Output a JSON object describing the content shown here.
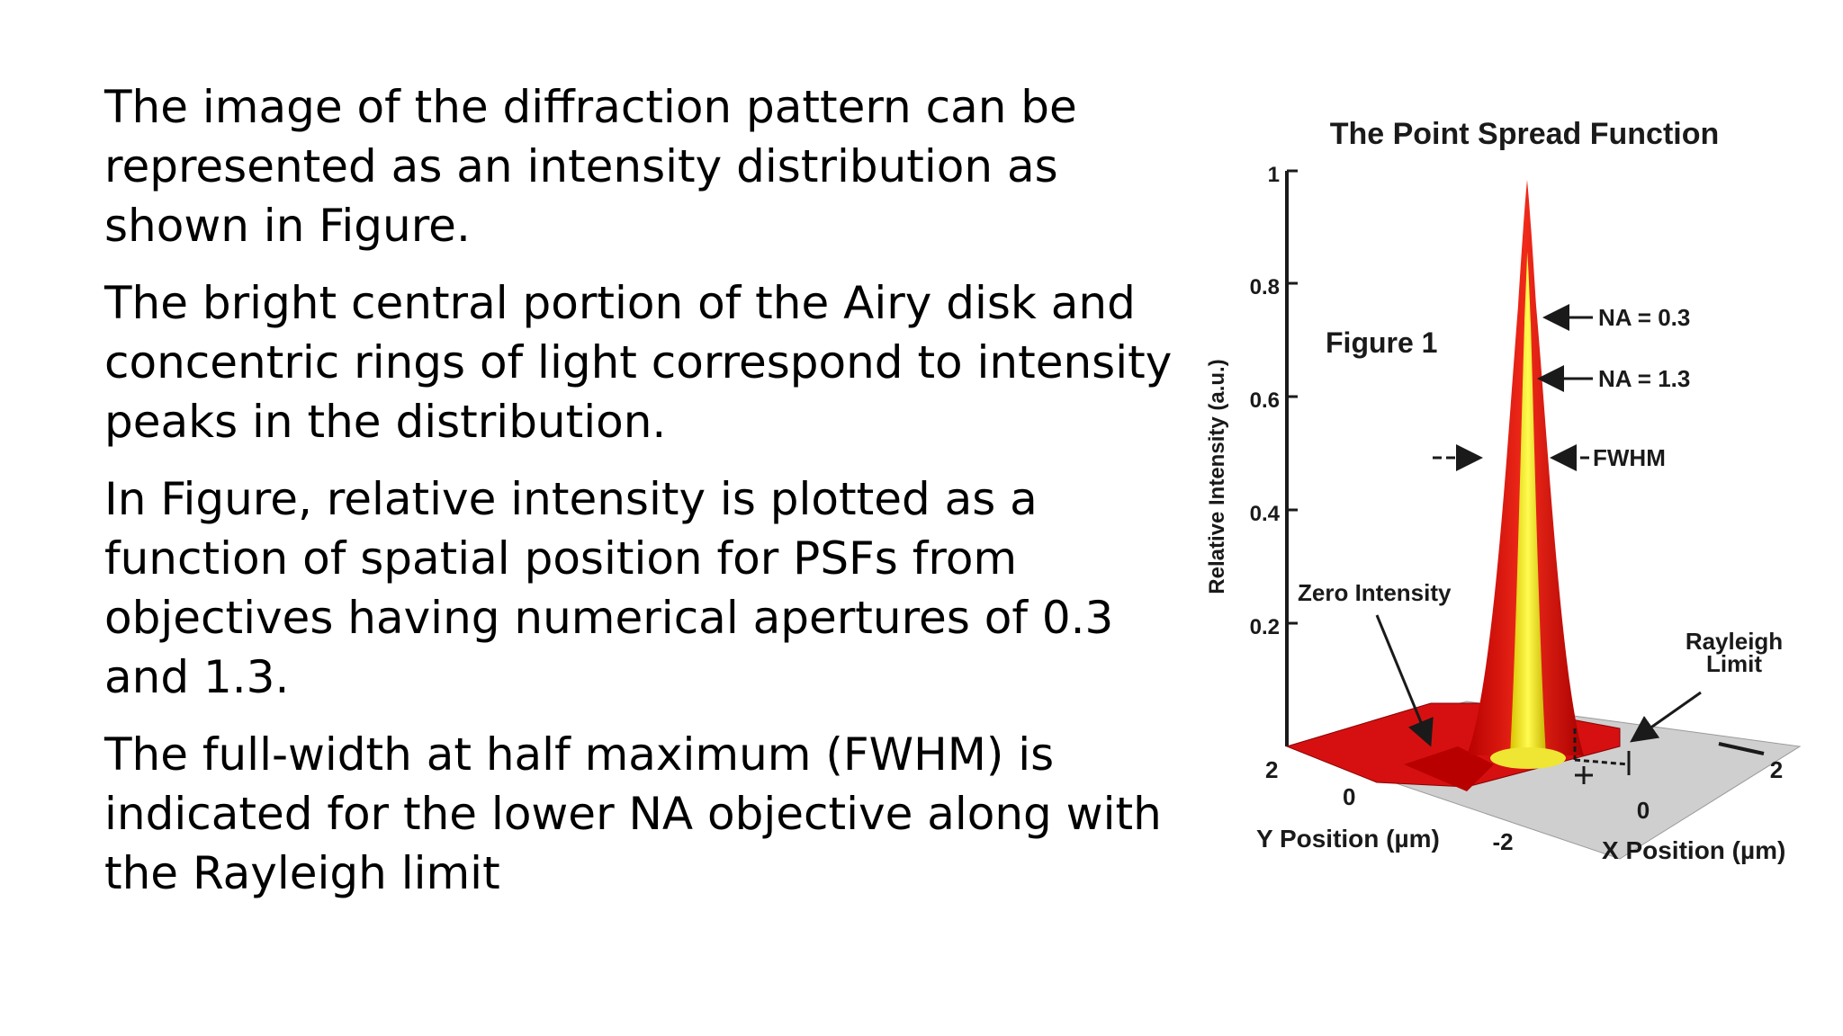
{
  "paragraphs": [
    "The image of the diffraction pattern can be\nrepresented as an intensity distribution as\nshown in Figure.",
    "The bright central portion of the Airy disk and\nconcentric rings of light correspond to intensity\npeaks in the distribution.",
    "In Figure, relative intensity is plotted as a\nfunction of spatial position for PSFs from\nobjectives having numerical apertures of 0.3\nand 1.3.",
    "The full-width at half maximum (FWHM) is\nindicated for the lower NA objective along with\nthe Rayleigh limit"
  ],
  "figure": {
    "title": "The Point Spread Function",
    "caption": "Figure 1",
    "y_axis_label": "Relative Intensity (a.u.)",
    "y_ticks": [
      "1",
      "0.8",
      "0.6",
      "0.4",
      "0.2"
    ],
    "labels": {
      "na_low": "NA = 0.3",
      "na_high": "NA = 1.3",
      "fwhm": "FWHM",
      "zero_intensity": "Zero Intensity",
      "rayleigh_line1": "Rayleigh",
      "rayleigh_line2": "Limit",
      "y_position": "Y Position (µm)",
      "x_position": "X Position (µm)"
    },
    "axis_ticks": {
      "y_pos_2": "2",
      "y_pos_0": "0",
      "x_pos_neg2": "-2",
      "x_pos_0": "0",
      "x_pos_2": "2"
    },
    "colors": {
      "low_na_surface": "#dd1111",
      "high_na_surface": "#f2ee2a",
      "floor": "#cfcfcf"
    }
  }
}
